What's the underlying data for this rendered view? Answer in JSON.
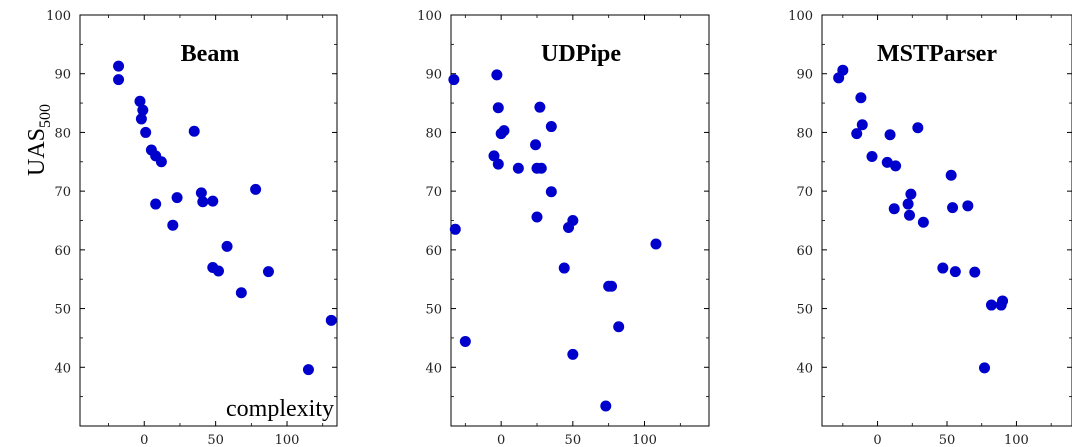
{
  "chart_data": [
    {
      "type": "scatter",
      "title": "Beam",
      "ylabel": "UAS",
      "ylabel_subscript": "500",
      "xlabel": "complexity",
      "xlim": [
        -45,
        135
      ],
      "ylim": [
        30,
        100
      ],
      "xticks": [
        0,
        50,
        100
      ],
      "yticks": [
        40,
        50,
        60,
        70,
        80,
        90,
        100
      ],
      "grid": false,
      "color": "#0000cc",
      "x": [
        -18,
        -18,
        -3,
        -1,
        -2,
        1,
        5,
        8,
        12,
        8,
        35,
        40,
        41,
        48,
        23,
        20,
        58,
        48,
        52,
        78,
        87,
        68,
        115,
        131
      ],
      "y": [
        91.3,
        89.0,
        85.3,
        83.8,
        82.3,
        80.0,
        77.0,
        76.0,
        75.0,
        67.8,
        80.2,
        69.7,
        68.2,
        68.3,
        68.9,
        64.2,
        60.6,
        57.0,
        56.4,
        70.3,
        56.3,
        52.7,
        39.6,
        48.0
      ]
    },
    {
      "type": "scatter",
      "title": "UDPipe",
      "xlim": [
        -35,
        145
      ],
      "ylim": [
        30,
        100
      ],
      "xticks": [
        0,
        50,
        100
      ],
      "yticks": [
        40,
        50,
        60,
        70,
        80,
        90,
        100
      ],
      "grid": false,
      "color": "#0000cc",
      "x": [
        -33,
        -3,
        -2,
        0,
        2,
        -5,
        -2,
        12,
        24,
        27,
        25,
        28,
        35,
        35,
        25,
        50,
        47,
        -32,
        -25,
        44,
        75,
        77,
        82,
        108,
        50,
        73
      ],
      "y": [
        89.0,
        89.8,
        84.2,
        79.8,
        80.3,
        76.0,
        74.6,
        73.9,
        77.9,
        84.3,
        73.9,
        73.9,
        81.0,
        69.9,
        65.6,
        65.0,
        63.8,
        63.5,
        44.4,
        56.9,
        53.8,
        53.8,
        46.9,
        61.0,
        42.2,
        33.4
      ]
    },
    {
      "type": "scatter",
      "title": "MSTParser",
      "xlim": [
        -40,
        140
      ],
      "ylim": [
        30,
        100
      ],
      "xticks": [
        0,
        50,
        100
      ],
      "yticks": [
        40,
        50,
        60,
        70,
        80,
        90,
        100
      ],
      "grid": false,
      "color": "#0000cc",
      "x": [
        -28,
        -25,
        -12,
        -11,
        -15,
        -4,
        7,
        9,
        13,
        29,
        24,
        22,
        23,
        12,
        33,
        53,
        54,
        65,
        56,
        47,
        70,
        82,
        89,
        90,
        77
      ],
      "y": [
        89.3,
        90.6,
        85.9,
        81.3,
        79.8,
        75.9,
        74.9,
        79.6,
        74.3,
        80.8,
        69.5,
        67.8,
        65.9,
        67.0,
        64.7,
        72.7,
        67.2,
        67.5,
        56.3,
        56.9,
        56.2,
        50.6,
        50.6,
        51.3,
        39.9
      ]
    }
  ]
}
